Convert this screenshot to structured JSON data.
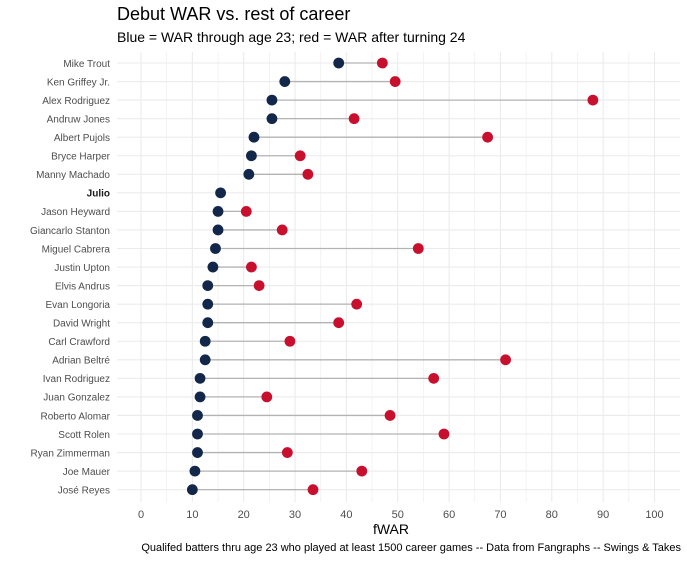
{
  "title": "Debut WAR vs. rest of career",
  "subtitle": "Blue = WAR through age 23; red = WAR after turning 24",
  "caption": "Qualifed batters thru age 23 who played at least 1500 career games -- Data from Fangraphs -- Swings & Takes",
  "colors": {
    "through_23": "#13274a",
    "after_24": "#c8102e",
    "segment": "#b3b3b3",
    "grid": "#ebebeb"
  },
  "chart_data": {
    "type": "dumbbell",
    "xlabel": "fWAR",
    "xlim": [
      0,
      100
    ],
    "xticks": [
      0,
      10,
      20,
      30,
      40,
      50,
      60,
      70,
      80,
      90,
      100
    ],
    "grid": true,
    "series_names": [
      "WAR through age 23",
      "WAR after turning 24"
    ],
    "players": [
      {
        "name": "Mike Trout",
        "bold": false,
        "war_thru_23": 38.5,
        "war_after_24": 47
      },
      {
        "name": "Ken Griffey Jr.",
        "bold": false,
        "war_thru_23": 28,
        "war_after_24": 49.5
      },
      {
        "name": "Alex Rodriguez",
        "bold": false,
        "war_thru_23": 25.5,
        "war_after_24": 88
      },
      {
        "name": "Andruw Jones",
        "bold": false,
        "war_thru_23": 25.5,
        "war_after_24": 41.5
      },
      {
        "name": "Albert Pujols",
        "bold": false,
        "war_thru_23": 22,
        "war_after_24": 67.5
      },
      {
        "name": "Bryce Harper",
        "bold": false,
        "war_thru_23": 21.5,
        "war_after_24": 31
      },
      {
        "name": "Manny Machado",
        "bold": false,
        "war_thru_23": 21,
        "war_after_24": 32.5
      },
      {
        "name": "Julio",
        "bold": true,
        "war_thru_23": 15.5,
        "war_after_24": null
      },
      {
        "name": "Jason Heyward",
        "bold": false,
        "war_thru_23": 15,
        "war_after_24": 20.5
      },
      {
        "name": "Giancarlo Stanton",
        "bold": false,
        "war_thru_23": 15,
        "war_after_24": 27.5
      },
      {
        "name": "Miguel Cabrera",
        "bold": false,
        "war_thru_23": 14.5,
        "war_after_24": 54
      },
      {
        "name": "Justin Upton",
        "bold": false,
        "war_thru_23": 14,
        "war_after_24": 21.5
      },
      {
        "name": "Elvis Andrus",
        "bold": false,
        "war_thru_23": 13,
        "war_after_24": 23
      },
      {
        "name": "Evan Longoria",
        "bold": false,
        "war_thru_23": 13,
        "war_after_24": 42
      },
      {
        "name": "David Wright",
        "bold": false,
        "war_thru_23": 13,
        "war_after_24": 38.5
      },
      {
        "name": "Carl Crawford",
        "bold": false,
        "war_thru_23": 12.5,
        "war_after_24": 29
      },
      {
        "name": "Adrian Beltré",
        "bold": false,
        "war_thru_23": 12.5,
        "war_after_24": 71
      },
      {
        "name": "Ivan Rodriguez",
        "bold": false,
        "war_thru_23": 11.5,
        "war_after_24": 57
      },
      {
        "name": "Juan Gonzalez",
        "bold": false,
        "war_thru_23": 11.5,
        "war_after_24": 24.5
      },
      {
        "name": "Roberto Alomar",
        "bold": false,
        "war_thru_23": 11,
        "war_after_24": 48.5
      },
      {
        "name": "Scott Rolen",
        "bold": false,
        "war_thru_23": 11,
        "war_after_24": 59
      },
      {
        "name": "Ryan Zimmerman",
        "bold": false,
        "war_thru_23": 11,
        "war_after_24": 28.5
      },
      {
        "name": "Joe Mauer",
        "bold": false,
        "war_thru_23": 10.5,
        "war_after_24": 43
      },
      {
        "name": "José Reyes",
        "bold": false,
        "war_thru_23": 10,
        "war_after_24": 33.5
      }
    ]
  }
}
